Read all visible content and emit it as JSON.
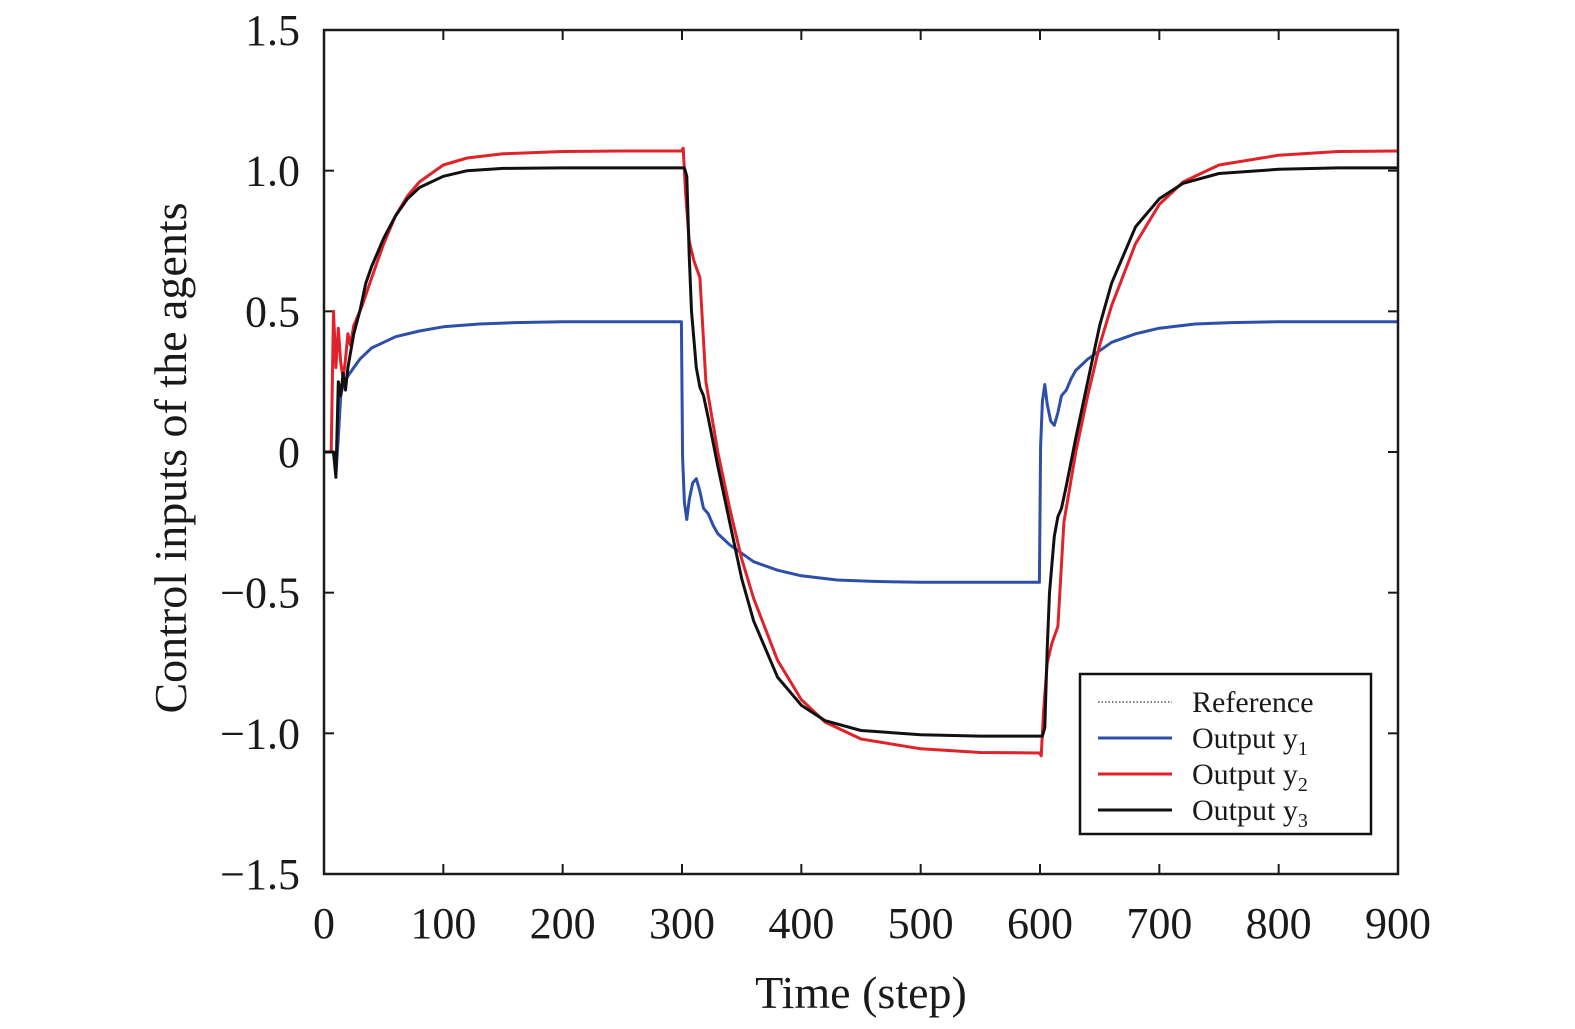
{
  "chart_data": {
    "type": "line",
    "xlabel": "Time (step)",
    "ylabel": "Control inputs of the agents",
    "xlim": [
      0,
      900
    ],
    "ylim": [
      -1.5,
      1.5
    ],
    "x_ticks": [
      0,
      100,
      200,
      300,
      400,
      500,
      600,
      700,
      800,
      900
    ],
    "x_tick_labels": [
      "0",
      "100",
      "200",
      "300",
      "400",
      "500",
      "600",
      "700",
      "800",
      "900"
    ],
    "y_ticks": [
      1.5,
      1.0,
      0.5,
      0,
      -0.5,
      -1.0,
      -1.5
    ],
    "y_tick_labels": [
      "1.5",
      "1.0",
      "0.5",
      "0",
      "−0.5",
      "−1.0",
      "−1.5"
    ],
    "grid": false,
    "legend_position": "bottom-right",
    "legend": [
      {
        "text": "Reference",
        "sub": "",
        "color": "#555555",
        "dashed": true
      },
      {
        "text": "Output y",
        "sub": "1",
        "color": "#2e4fa8",
        "dashed": false
      },
      {
        "text": "Output y",
        "sub": "2",
        "color": "#e0222a",
        "dashed": false
      },
      {
        "text": "Output y",
        "sub": "3",
        "color": "#111111",
        "dashed": false
      }
    ],
    "series": [
      {
        "name": "Output y1",
        "color": "#2e4fa8",
        "x": [
          0,
          8,
          10,
          12,
          14,
          16,
          20,
          25,
          30,
          40,
          50,
          60,
          80,
          100,
          130,
          160,
          200,
          250,
          299.5,
          300.5,
          302,
          304,
          306,
          309,
          312,
          315,
          318,
          322,
          326,
          330,
          340,
          360,
          380,
          400,
          430,
          460,
          500,
          550,
          599.5,
          600.5,
          602,
          604,
          606,
          609,
          612,
          615,
          618,
          622,
          626,
          630,
          640,
          660,
          680,
          700,
          730,
          760,
          800,
          850,
          900
        ],
        "values": [
          0,
          0,
          -0.08,
          0.05,
          0.2,
          0.24,
          0.27,
          0.3,
          0.33,
          0.37,
          0.39,
          0.41,
          0.43,
          0.445,
          0.455,
          0.46,
          0.463,
          0.463,
          0.463,
          -0.02,
          -0.18,
          -0.24,
          -0.17,
          -0.11,
          -0.095,
          -0.14,
          -0.2,
          -0.22,
          -0.26,
          -0.29,
          -0.33,
          -0.39,
          -0.42,
          -0.44,
          -0.455,
          -0.46,
          -0.463,
          -0.463,
          -0.463,
          0.02,
          0.18,
          0.24,
          0.17,
          0.11,
          0.095,
          0.14,
          0.2,
          0.22,
          0.26,
          0.29,
          0.33,
          0.39,
          0.42,
          0.44,
          0.455,
          0.46,
          0.463,
          0.463,
          0.463
        ]
      },
      {
        "name": "Output y2",
        "color": "#e0222a",
        "x": [
          0,
          6,
          8,
          10,
          12,
          14,
          16,
          18,
          20,
          22,
          25,
          28,
          32,
          40,
          50,
          60,
          70,
          80,
          100,
          120,
          150,
          200,
          250,
          299.5,
          301,
          303,
          306,
          310,
          315,
          320,
          330,
          340,
          350,
          360,
          380,
          400,
          420,
          450,
          500,
          550,
          599.5,
          601,
          603,
          606,
          610,
          615,
          620,
          630,
          640,
          650,
          660,
          680,
          700,
          720,
          750,
          800,
          850,
          900
        ],
        "values": [
          0,
          0,
          0.5,
          0.3,
          0.44,
          0.32,
          0.26,
          0.33,
          0.42,
          0.38,
          0.45,
          0.48,
          0.52,
          0.62,
          0.74,
          0.84,
          0.91,
          0.96,
          1.02,
          1.045,
          1.06,
          1.068,
          1.07,
          1.07,
          1.08,
          0.92,
          0.75,
          0.68,
          0.62,
          0.25,
          0.0,
          -0.2,
          -0.38,
          -0.52,
          -0.74,
          -0.88,
          -0.96,
          -1.02,
          -1.055,
          -1.068,
          -1.07,
          -1.08,
          -0.92,
          -0.75,
          -0.68,
          -0.62,
          -0.25,
          0.0,
          0.2,
          0.38,
          0.52,
          0.74,
          0.88,
          0.96,
          1.02,
          1.055,
          1.068,
          1.07
        ]
      },
      {
        "name": "Output y3",
        "color": "#111111",
        "x": [
          0,
          8,
          10,
          12,
          14,
          16,
          18,
          20,
          25,
          30,
          35,
          40,
          50,
          60,
          70,
          80,
          100,
          120,
          150,
          200,
          250,
          300,
          302,
          304,
          306,
          308,
          312,
          315,
          318,
          322,
          330,
          340,
          350,
          360,
          380,
          400,
          420,
          450,
          500,
          550,
          600,
          602,
          604,
          606,
          608,
          612,
          615,
          618,
          622,
          630,
          640,
          650,
          660,
          680,
          700,
          720,
          750,
          800,
          850,
          900
        ],
        "values": [
          0,
          0,
          -0.09,
          0.25,
          0.2,
          0.28,
          0.22,
          0.3,
          0.42,
          0.5,
          0.6,
          0.66,
          0.76,
          0.84,
          0.9,
          0.94,
          0.98,
          1.0,
          1.008,
          1.01,
          1.01,
          1.01,
          1.01,
          0.98,
          0.7,
          0.5,
          0.3,
          0.23,
          0.2,
          0.12,
          -0.05,
          -0.25,
          -0.45,
          -0.6,
          -0.8,
          -0.9,
          -0.955,
          -0.99,
          -1.005,
          -1.01,
          -1.01,
          -1.01,
          -0.98,
          -0.7,
          -0.5,
          -0.3,
          -0.23,
          -0.2,
          -0.12,
          0.05,
          0.25,
          0.45,
          0.6,
          0.8,
          0.9,
          0.955,
          0.99,
          1.005,
          1.01,
          1.01
        ]
      }
    ]
  }
}
